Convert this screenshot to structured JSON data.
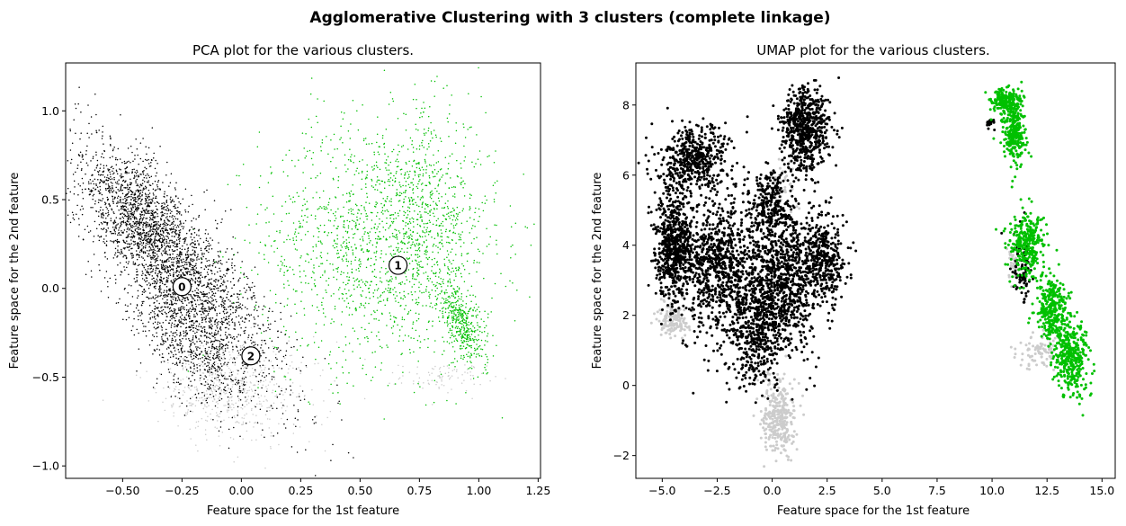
{
  "figure": {
    "suptitle": "Agglomerative Clustering with 3 clusters (complete linkage)"
  },
  "colors": {
    "cluster_0": "#000000",
    "cluster_1": "#00c000",
    "cluster_2": "#cccccc"
  },
  "chart_data": [
    {
      "type": "scatter",
      "title": "PCA plot for the various clusters.",
      "xlabel": "Feature space for the 1st feature",
      "ylabel": "Feature space for the 2nd feature",
      "xlim": [
        -0.74,
        1.26
      ],
      "ylim": [
        -1.07,
        1.27
      ],
      "xticks": [
        -0.5,
        -0.25,
        0.0,
        0.25,
        0.5,
        0.75,
        1.0,
        1.25
      ],
      "xtick_labels": [
        "−0.50",
        "−0.25",
        "0.00",
        "0.25",
        "0.50",
        "0.75",
        "1.00",
        "1.25"
      ],
      "yticks": [
        -1.0,
        -0.5,
        0.0,
        0.5,
        1.0
      ],
      "ytick_labels": [
        "−1.0",
        "−0.5",
        "0.0",
        "0.5",
        "1.0"
      ],
      "grid": false,
      "centers": [
        {
          "label": "0",
          "x": -0.25,
          "y": 0.01
        },
        {
          "label": "1",
          "x": 0.66,
          "y": 0.13
        },
        {
          "label": "2",
          "x": 0.04,
          "y": -0.38
        }
      ],
      "clusters": [
        {
          "id": "0",
          "color": "#000000",
          "regions": [
            {
              "cx": -0.29,
              "cy": 0.15,
              "sx": 0.11,
              "sy": 0.38,
              "rot": 0.52,
              "n": 2600
            },
            {
              "cx": -0.42,
              "cy": 0.42,
              "sx": 0.08,
              "sy": 0.16,
              "rot": 0.3,
              "n": 500
            },
            {
              "cx": -0.22,
              "cy": -0.3,
              "sx": 0.09,
              "sy": 0.2,
              "rot": 0.4,
              "n": 650
            }
          ]
        },
        {
          "id": "1",
          "color": "#00c000",
          "regions": [
            {
              "cx": 0.58,
              "cy": 0.25,
              "sx": 0.25,
              "sy": 0.34,
              "rot": 0.0,
              "n": 1500
            },
            {
              "cx": 0.93,
              "cy": -0.2,
              "sx": 0.04,
              "sy": 0.12,
              "rot": 0.3,
              "n": 420
            },
            {
              "cx": 0.78,
              "cy": 0.45,
              "sx": 0.12,
              "sy": 0.28,
              "rot": 0.0,
              "n": 400
            }
          ]
        },
        {
          "id": "2",
          "color": "#cccccc",
          "regions": [
            {
              "cx": -0.1,
              "cy": -0.55,
              "sx": 0.12,
              "sy": 0.14,
              "rot": 0.3,
              "n": 420
            },
            {
              "cx": 0.1,
              "cy": -0.6,
              "sx": 0.14,
              "sy": 0.15,
              "rot": 0.0,
              "n": 180
            },
            {
              "cx": 0.85,
              "cy": -0.5,
              "sx": 0.09,
              "sy": 0.04,
              "rot": 0.0,
              "n": 90
            }
          ]
        }
      ]
    },
    {
      "type": "scatter",
      "title": "UMAP plot for the various clusters.",
      "xlabel": "Feature space for the 1st feature",
      "ylabel": "Feature space for the 2nd feature",
      "xlim": [
        -6.2,
        15.6
      ],
      "ylim": [
        -2.65,
        9.2
      ],
      "xticks": [
        -5.0,
        -2.5,
        0.0,
        2.5,
        5.0,
        7.5,
        10.0,
        12.5,
        15.0
      ],
      "xtick_labels": [
        "−5.0",
        "−2.5",
        "0.0",
        "2.5",
        "5.0",
        "7.5",
        "10.0",
        "12.5",
        "15.0"
      ],
      "yticks": [
        -2,
        0,
        2,
        4,
        6,
        8
      ],
      "ytick_labels": [
        "−2",
        "0",
        "2",
        "4",
        "6",
        "8"
      ],
      "grid": false,
      "clusters": [
        {
          "id": "0",
          "color": "#000000",
          "regions": [
            {
              "cx": 1.5,
              "cy": 7.3,
              "sx": 0.55,
              "sy": 0.6,
              "rot": 0.0,
              "n": 650
            },
            {
              "cx": -3.5,
              "cy": 6.4,
              "sx": 0.8,
              "sy": 0.45,
              "rot": 0.2,
              "n": 500
            },
            {
              "cx": -4.5,
              "cy": 4.0,
              "sx": 0.4,
              "sy": 0.7,
              "rot": 0.0,
              "n": 550
            },
            {
              "cx": -2.5,
              "cy": 3.5,
              "sx": 1.0,
              "sy": 1.0,
              "rot": 0.0,
              "n": 900
            },
            {
              "cx": 0.5,
              "cy": 3.0,
              "sx": 0.9,
              "sy": 1.0,
              "rot": 0.0,
              "n": 900
            },
            {
              "cx": 2.3,
              "cy": 3.6,
              "sx": 0.5,
              "sy": 0.6,
              "rot": 0.0,
              "n": 350
            },
            {
              "cx": -0.8,
              "cy": 1.6,
              "sx": 0.6,
              "sy": 0.8,
              "rot": 0.0,
              "n": 450
            },
            {
              "cx": 0.0,
              "cy": 5.2,
              "sx": 0.5,
              "sy": 0.5,
              "rot": 0.0,
              "n": 250
            },
            {
              "cx": 11.3,
              "cy": 3.3,
              "sx": 0.25,
              "sy": 0.5,
              "rot": 0.0,
              "n": 90
            },
            {
              "cx": 9.9,
              "cy": 7.5,
              "sx": 0.1,
              "sy": 0.08,
              "rot": 0.0,
              "n": 20
            }
          ]
        },
        {
          "id": "1",
          "color": "#00c000",
          "regions": [
            {
              "cx": 10.6,
              "cy": 8.1,
              "sx": 0.35,
              "sy": 0.18,
              "rot": 0.0,
              "n": 200
            },
            {
              "cx": 11.0,
              "cy": 7.2,
              "sx": 0.25,
              "sy": 0.45,
              "rot": 0.0,
              "n": 300
            },
            {
              "cx": 11.6,
              "cy": 4.0,
              "sx": 0.4,
              "sy": 0.45,
              "rot": 0.0,
              "n": 320
            },
            {
              "cx": 12.7,
              "cy": 2.2,
              "sx": 0.35,
              "sy": 0.5,
              "rot": 0.0,
              "n": 300
            },
            {
              "cx": 13.6,
              "cy": 0.8,
              "sx": 0.4,
              "sy": 0.55,
              "rot": 0.0,
              "n": 380
            }
          ]
        },
        {
          "id": "2",
          "color": "#cccccc",
          "regions": [
            {
              "cx": 0.3,
              "cy": -0.9,
              "sx": 0.35,
              "sy": 0.55,
              "rot": 0.0,
              "n": 320
            },
            {
              "cx": -4.5,
              "cy": 1.9,
              "sx": 0.35,
              "sy": 0.25,
              "rot": 0.0,
              "n": 160
            },
            {
              "cx": 12.2,
              "cy": 1.0,
              "sx": 0.5,
              "sy": 0.25,
              "rot": 0.0,
              "n": 90
            },
            {
              "cx": 11.0,
              "cy": 3.5,
              "sx": 0.2,
              "sy": 0.3,
              "rot": 0.0,
              "n": 40
            },
            {
              "cx": 0.5,
              "cy": 5.8,
              "sx": 0.3,
              "sy": 0.3,
              "rot": 0.0,
              "n": 40
            }
          ]
        }
      ]
    }
  ]
}
